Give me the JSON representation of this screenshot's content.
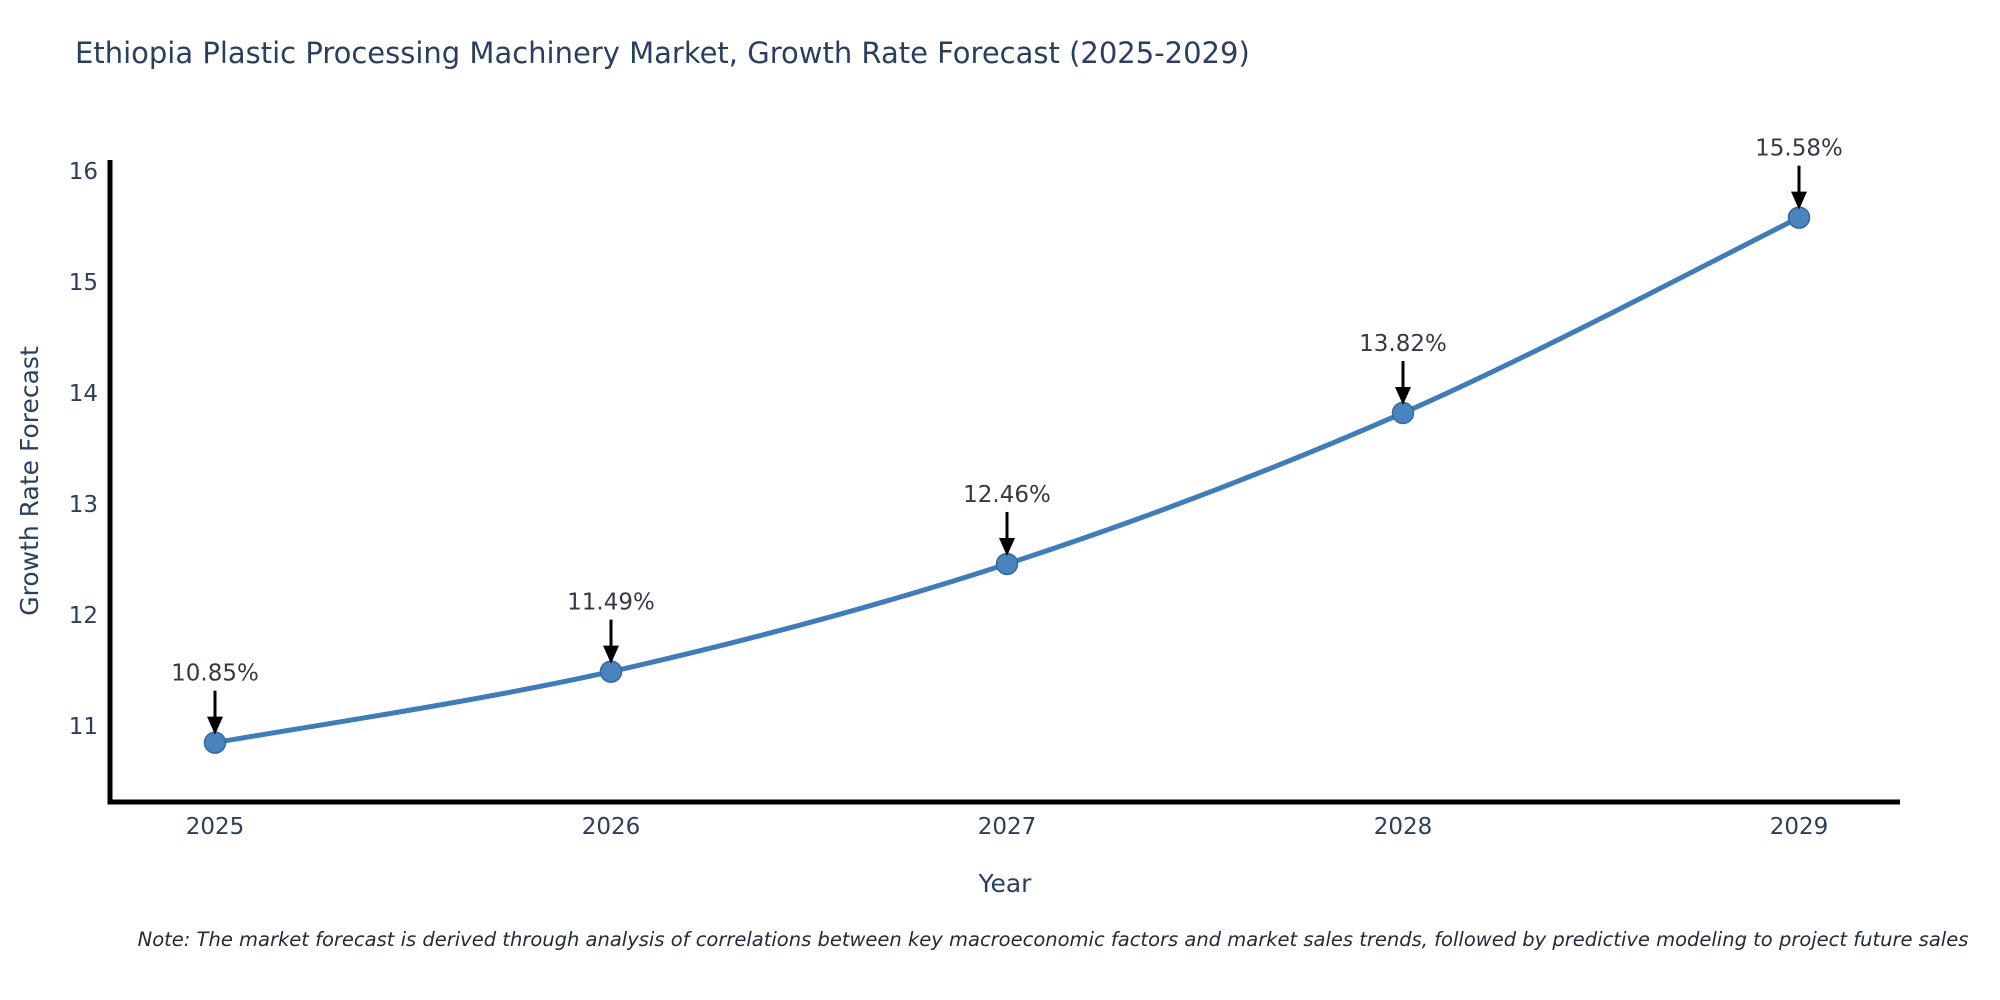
{
  "title": "Ethiopia Plastic Processing Machinery Market, Growth Rate Forecast (2025-2029)",
  "note": "Note: The market forecast is derived through analysis of correlations between key macroeconomic factors and market sales trends, followed by predictive modeling to project future sales",
  "chart_data": {
    "type": "line",
    "title": "Ethiopia Plastic Processing Machinery Market, Growth Rate Forecast (2025-2029)",
    "categories": [
      "2025",
      "2026",
      "2027",
      "2028",
      "2029"
    ],
    "values": [
      10.85,
      11.49,
      12.46,
      13.82,
      15.58
    ],
    "point_labels": [
      "10.85%",
      "11.49%",
      "12.46%",
      "13.82%",
      "15.58%"
    ],
    "xlabel": "Year",
    "ylabel": "Growth Rate Forecast",
    "yticks": [
      11,
      12,
      13,
      14,
      15,
      16
    ],
    "ylim": [
      10.32,
      16.1
    ],
    "grid": false,
    "legend": "none",
    "colors": {
      "line": "#3f7cb8",
      "marker": "#4a84bf",
      "marker_edge": "#35699c",
      "axis": "#000000",
      "text": "#2a3f5f",
      "annotation_text": "#333a45",
      "arrow": "#000000"
    }
  }
}
